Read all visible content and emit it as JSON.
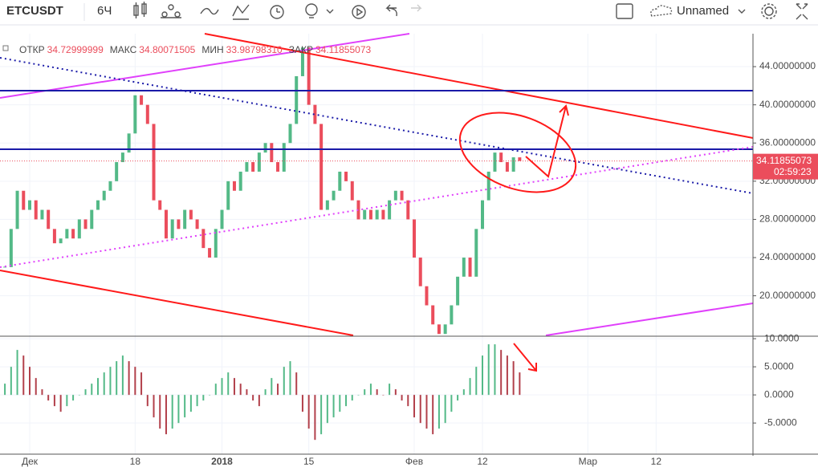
{
  "toolbar": {
    "symbol": "ETCUSDT",
    "interval": "6Ч",
    "layout_name": "Unnamed"
  },
  "legend": [
    {
      "label": "ОТКР",
      "value": "34.72999999"
    },
    {
      "label": "МАКС",
      "value": "34.80071505"
    },
    {
      "label": "МИН",
      "value": "33.98798310"
    },
    {
      "label": "ЗАКР",
      "value": "34.11855073"
    }
  ],
  "chart_data": {
    "type": "candlestick",
    "categories": [
      null,
      null,
      null,
      null,
      "Дек",
      null,
      null,
      null,
      null,
      null,
      null,
      null,
      null,
      null,
      null,
      null,
      null,
      null,
      null,
      null,
      null,
      "18",
      null,
      null,
      null,
      null,
      null,
      null,
      null,
      null,
      null,
      null,
      null,
      null,
      null,
      "2018",
      null,
      null,
      null,
      null,
      null,
      null,
      null,
      null,
      null,
      null,
      null,
      null,
      null,
      "15",
      null,
      null,
      null,
      null,
      null,
      null,
      null,
      null,
      null,
      null,
      null,
      null,
      null,
      null,
      null,
      null,
      "Фев",
      null,
      null,
      null,
      null,
      null,
      null,
      null,
      null,
      null,
      null,
      "12",
      null,
      null,
      null,
      null,
      null,
      null,
      null,
      null,
      null,
      null,
      null,
      null,
      null,
      null,
      null,
      null,
      "Мар",
      null,
      null,
      null,
      null,
      null,
      null,
      null,
      null,
      null,
      null,
      "12"
    ],
    "series": [
      {
        "name": "ETCUSDT",
        "up_color": "#53b987",
        "down_color": "#eb4d5c",
        "values": [
          23,
          27,
          31,
          29,
          30,
          28,
          29,
          27,
          25.5,
          26,
          27,
          26,
          28,
          27,
          29,
          30,
          31,
          32,
          34,
          35,
          37,
          41,
          40,
          38,
          30,
          29,
          26,
          28,
          27,
          29,
          28,
          27,
          25,
          24,
          27,
          29,
          32,
          31,
          33,
          34,
          33,
          35,
          36,
          34,
          33,
          36,
          38,
          43,
          46,
          40,
          38,
          29,
          30,
          31,
          33,
          32,
          30,
          28,
          29,
          28,
          29,
          28,
          30,
          31,
          30,
          28,
          24,
          21,
          19,
          17,
          16,
          17,
          19,
          22,
          24,
          22,
          27,
          30,
          33,
          35,
          34,
          33,
          34.5,
          34.11855073,
          null,
          null,
          null,
          null,
          null,
          null,
          null,
          null,
          null,
          null,
          null,
          null,
          null,
          null,
          null,
          null,
          null,
          null,
          null,
          null,
          null,
          null
        ]
      }
    ],
    "ylim": [
      15.85,
      47.45
    ],
    "yticks": [
      {
        "value": 44,
        "label": "44.00000000"
      },
      {
        "value": 40,
        "label": "40.00000000"
      },
      {
        "value": 36,
        "label": "36.00000000"
      },
      {
        "value": 32,
        "label": "32.00000000"
      },
      {
        "value": 28,
        "label": "28.00000000"
      },
      {
        "value": 24,
        "label": "24.00000000"
      },
      {
        "value": 20,
        "label": "20.00000000"
      }
    ],
    "last_price_label": "34.11855073",
    "countdown": "02:59:23",
    "grid": true,
    "oscillator": {
      "type": "histogram",
      "up_color": "#53b987",
      "down_color": "#b2404b",
      "values": [
        2,
        5,
        8,
        7,
        5,
        3,
        1,
        -1,
        -2,
        -3,
        -2,
        -1,
        0,
        1,
        2,
        3,
        4,
        5,
        6,
        7,
        6,
        5,
        4,
        -2,
        -4,
        -6,
        -7,
        -6,
        -5,
        -4,
        -3,
        -2,
        -1,
        0,
        2,
        3,
        4,
        3,
        2,
        1,
        -1,
        -2,
        1,
        3,
        2,
        5,
        6,
        4,
        -3,
        -6,
        -8,
        -7,
        -5,
        -4,
        -3,
        -2,
        -1,
        0,
        1,
        2,
        1,
        0,
        2,
        1,
        -1,
        -2,
        -4,
        -5,
        -6,
        -7,
        -6,
        -5,
        -3,
        -1,
        1,
        3,
        5,
        7,
        9,
        9,
        8,
        7,
        6,
        4
      ],
      "ylim": [
        -10.4,
        10.3
      ],
      "yticks": [
        {
          "value": 10,
          "label": "10.0000"
        },
        {
          "value": 5,
          "label": "5.0000"
        },
        {
          "value": 0,
          "label": "0.0000"
        },
        {
          "value": -5,
          "label": "-5.0000"
        }
      ]
    }
  }
}
